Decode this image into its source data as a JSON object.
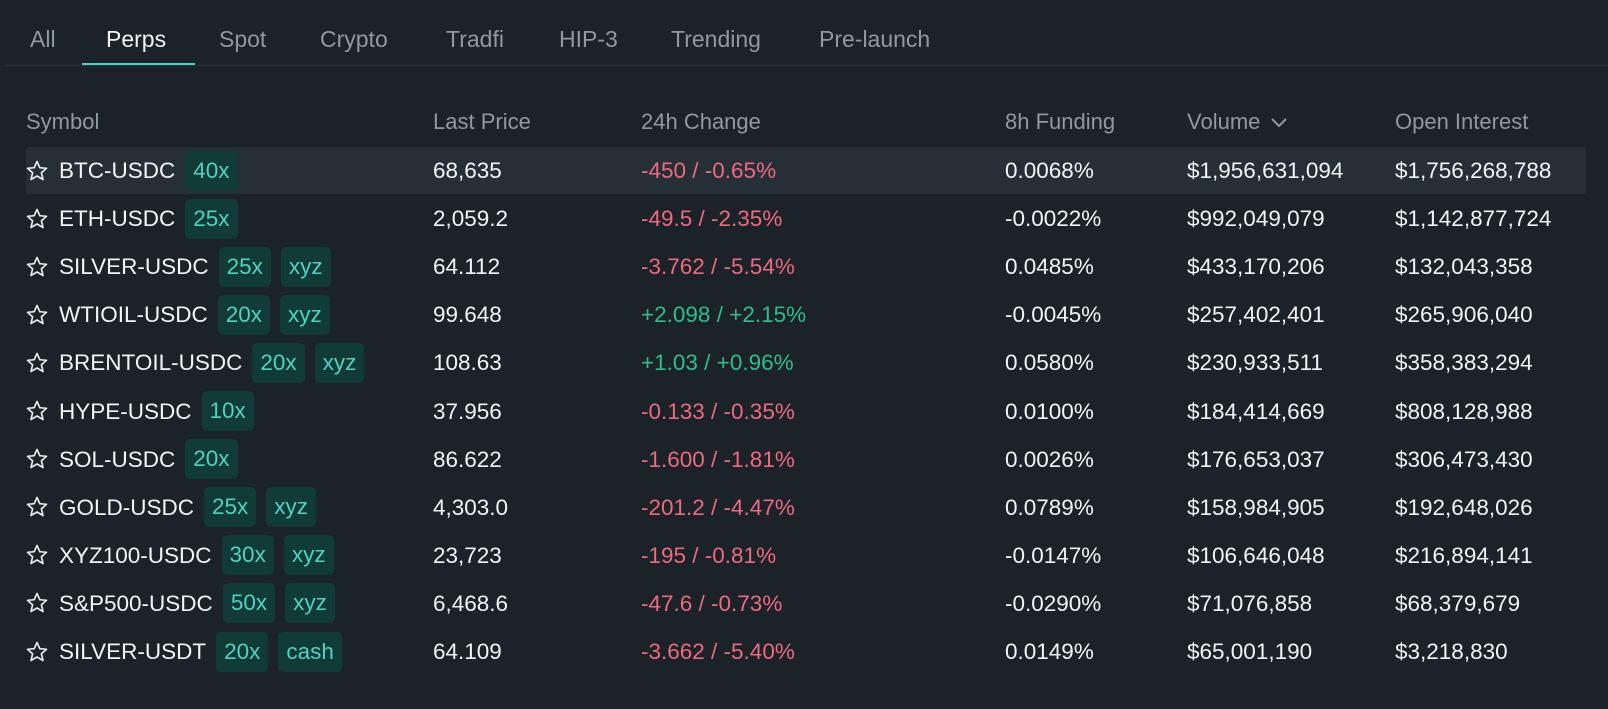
{
  "tabs": {
    "items": [
      "All",
      "Perps",
      "Spot",
      "Crypto",
      "Tradfi",
      "HIP-3",
      "Trending",
      "Pre-launch"
    ],
    "active": "Perps"
  },
  "table": {
    "headers": [
      "Symbol",
      "Last Price",
      "24h Change",
      "8h Funding",
      "Volume",
      "Open Interest"
    ],
    "rows": [
      {
        "symbol": "BTC-USDC",
        "badges": [
          "40x"
        ],
        "last_price": "68,635",
        "change": "-450 / -0.65%",
        "funding": "0.0068%",
        "volume": "$1,956,631,094",
        "open_interest": "$1,756,268,788"
      },
      {
        "symbol": "ETH-USDC",
        "badges": [
          "25x"
        ],
        "last_price": "2,059.2",
        "change": "-49.5 / -2.35%",
        "funding": "-0.0022%",
        "volume": "$992,049,079",
        "open_interest": "$1,142,877,724"
      },
      {
        "symbol": "SILVER-USDC",
        "badges": [
          "25x",
          "xyz"
        ],
        "last_price": "64.112",
        "change": "-3.762 / -5.54%",
        "funding": "0.0485%",
        "volume": "$433,170,206",
        "open_interest": "$132,043,358"
      },
      {
        "symbol": "WTIOIL-USDC",
        "badges": [
          "20x",
          "xyz"
        ],
        "last_price": "99.648",
        "change": "+2.098 / +2.15%",
        "funding": "-0.0045%",
        "volume": "$257,402,401",
        "open_interest": "$265,906,040"
      },
      {
        "symbol": "BRENTOIL-USDC",
        "badges": [
          "20x",
          "xyz"
        ],
        "last_price": "108.63",
        "change": "+1.03 / +0.96%",
        "funding": "0.0580%",
        "volume": "$230,933,511",
        "open_interest": "$358,383,294"
      },
      {
        "symbol": "HYPE-USDC",
        "badges": [
          "10x"
        ],
        "last_price": "37.956",
        "change": "-0.133 / -0.35%",
        "funding": "0.0100%",
        "volume": "$184,414,669",
        "open_interest": "$808,128,988"
      },
      {
        "symbol": "SOL-USDC",
        "badges": [
          "20x"
        ],
        "last_price": "86.622",
        "change": "-1.600 / -1.81%",
        "funding": "0.0026%",
        "volume": "$176,653,037",
        "open_interest": "$306,473,430"
      },
      {
        "symbol": "GOLD-USDC",
        "badges": [
          "25x",
          "xyz"
        ],
        "last_price": "4,303.0",
        "change": "-201.2 / -4.47%",
        "funding": "0.0789%",
        "volume": "$158,984,905",
        "open_interest": "$192,648,026"
      },
      {
        "symbol": "XYZ100-USDC",
        "badges": [
          "30x",
          "xyz"
        ],
        "last_price": "23,723",
        "change": "-195 / -0.81%",
        "funding": "-0.0147%",
        "volume": "$106,646,048",
        "open_interest": "$216,894,141"
      },
      {
        "symbol": "S&P500-USDC",
        "badges": [
          "50x",
          "xyz"
        ],
        "last_price": "6,468.6",
        "change": "-47.6 / -0.73%",
        "funding": "-0.0290%",
        "volume": "$71,076,858",
        "open_interest": "$68,379,679"
      },
      {
        "symbol": "SILVER-USDT",
        "badges": [
          "20x",
          "cash"
        ],
        "last_price": "64.109",
        "change": "-3.662 / -5.40%",
        "funding": "0.0149%",
        "volume": "$65,001,190",
        "open_interest": "$3,218,830"
      }
    ]
  }
}
